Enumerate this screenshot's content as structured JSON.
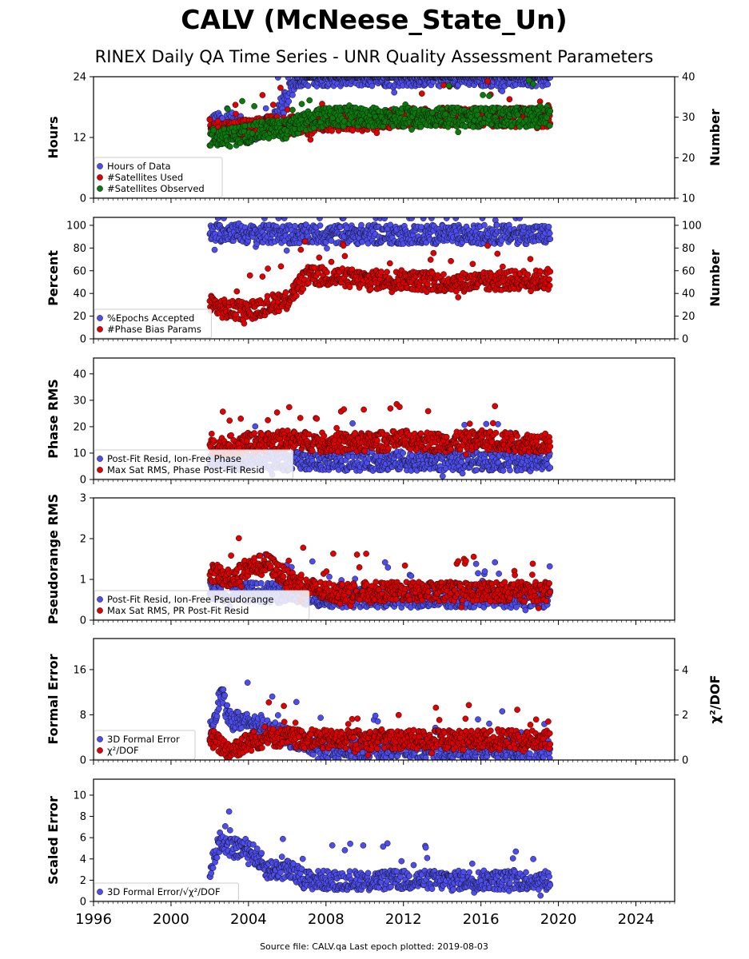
{
  "title": "CALV (McNeese_State_Un)",
  "subtitle": "RINEX Daily QA Time Series - UNR Quality Assessment Parameters",
  "footer": "Source file: CALV.qa Last epoch plotted: 2019-08-03",
  "chart_data": [
    {
      "type": "scatter",
      "ylabel": "Hours",
      "ylabel_right": "Number",
      "ylim": [
        0,
        24
      ],
      "yticks": [
        "0",
        "12",
        "24"
      ],
      "ylim_right": [
        10,
        40
      ],
      "yticks_right": [
        "10",
        "20",
        "30",
        "40"
      ],
      "xlim": [
        1996,
        2026
      ],
      "legend_position": "lower-left",
      "series": [
        {
          "name": "Hours of Data",
          "color": "#4c4cf0",
          "axis": "left",
          "x": [
            2002.0,
            2002.5,
            2003.0,
            2003.5,
            2004.0,
            2005.0,
            2006.0,
            2006.5,
            2007.0,
            2008.0,
            2009.0,
            2010.0,
            2012.0,
            2014.0,
            2016.0,
            2018.0,
            2019.6
          ],
          "y": [
            15,
            15,
            15,
            15,
            13,
            14,
            20,
            24,
            24,
            24,
            24,
            24,
            24,
            24,
            24,
            24,
            24
          ]
        },
        {
          "name": "#Satellites Used",
          "color": "#e00000",
          "axis": "right",
          "x": [
            2002.0,
            2003.0,
            2004.0,
            2005.0,
            2006.0,
            2007.0,
            2008.0,
            2010.0,
            2012.0,
            2014.0,
            2016.0,
            2018.0,
            2019.6
          ],
          "y": [
            27,
            27,
            27,
            28,
            28,
            28,
            29,
            29,
            30,
            30,
            30,
            30,
            30
          ]
        },
        {
          "name": "#Satellites Observed",
          "color": "#0a7a0a",
          "axis": "right",
          "x": [
            2002.0,
            2003.0,
            2004.0,
            2005.0,
            2006.0,
            2007.0,
            2008.0,
            2010.0,
            2012.0,
            2014.0,
            2016.0,
            2018.0,
            2019.6
          ],
          "y": [
            25,
            25,
            26,
            27,
            27,
            29,
            30,
            30,
            30,
            30,
            30,
            30,
            30
          ]
        }
      ]
    },
    {
      "type": "scatter",
      "ylabel": "Percent",
      "ylabel_right": "Number",
      "ylim": [
        0,
        107
      ],
      "yticks": [
        "0",
        "20",
        "40",
        "60",
        "80",
        "100"
      ],
      "ylim_right": [
        0,
        107
      ],
      "yticks_right": [
        "0",
        "20",
        "40",
        "60",
        "80",
        "100"
      ],
      "xlim": [
        1996,
        2026
      ],
      "legend_position": "lower-left",
      "series": [
        {
          "name": "%Epochs Accepted",
          "color": "#4c4cf0",
          "axis": "left",
          "x": [
            2002.0,
            2003.0,
            2004.0,
            2006.0,
            2008.0,
            2010.0,
            2012.0,
            2014.0,
            2016.0,
            2018.0,
            2019.6
          ],
          "y": [
            92,
            95,
            92,
            92,
            92,
            92,
            92,
            92,
            92,
            92,
            92
          ]
        },
        {
          "name": "#Phase Bias Params",
          "color": "#e00000",
          "axis": "right",
          "x": [
            2002.0,
            2003.0,
            2004.0,
            2005.0,
            2006.0,
            2007.0,
            2008.0,
            2010.0,
            2012.0,
            2014.0,
            2016.0,
            2018.0,
            2019.6
          ],
          "y": [
            30,
            25,
            25,
            30,
            35,
            55,
            55,
            52,
            52,
            50,
            50,
            52,
            52
          ]
        }
      ]
    },
    {
      "type": "scatter",
      "ylabel": "Phase RMS",
      "ylim": [
        0,
        46
      ],
      "yticks": [
        "0",
        "10",
        "20",
        "30",
        "40"
      ],
      "xlim": [
        1996,
        2026
      ],
      "legend_position": "lower-left",
      "series": [
        {
          "name": "Post-Fit Resid, Ion-Free Phase",
          "color": "#4c4cf0",
          "axis": "left",
          "x": [
            2002.0,
            2004.0,
            2006.0,
            2008.0,
            2010.0,
            2012.0,
            2014.0,
            2016.0,
            2018.0,
            2019.6
          ],
          "y": [
            7,
            7,
            7,
            7,
            7,
            7,
            7,
            7,
            7,
            7
          ]
        },
        {
          "name": "Max Sat RMS, Phase Post-Fit Resid",
          "color": "#e00000",
          "axis": "left",
          "x": [
            2002.0,
            2004.0,
            2006.0,
            2008.0,
            2010.0,
            2012.0,
            2014.0,
            2016.0,
            2018.0,
            2019.6
          ],
          "y": [
            12,
            14,
            15,
            14,
            14,
            15,
            14,
            15,
            14,
            14
          ]
        }
      ]
    },
    {
      "type": "scatter",
      "ylabel": "Pseudorange RMS",
      "ylim": [
        0,
        3
      ],
      "yticks": [
        "0",
        "1",
        "2",
        "3"
      ],
      "xlim": [
        1996,
        2026
      ],
      "legend_position": "lower-left",
      "series": [
        {
          "name": "Post-Fit Resid, Ion-Free Pseudorange",
          "color": "#4c4cf0",
          "axis": "left",
          "x": [
            2002.0,
            2004.0,
            2006.0,
            2008.0,
            2010.0,
            2012.0,
            2014.0,
            2016.0,
            2018.0,
            2019.6
          ],
          "y": [
            0.7,
            0.7,
            0.65,
            0.55,
            0.55,
            0.55,
            0.55,
            0.55,
            0.55,
            0.55
          ]
        },
        {
          "name": "Max Sat RMS, PR Post-Fit Resid",
          "color": "#e00000",
          "axis": "left",
          "x": [
            2002.0,
            2003.0,
            2004.0,
            2005.0,
            2006.0,
            2007.0,
            2008.0,
            2010.0,
            2012.0,
            2014.0,
            2016.0,
            2018.0,
            2019.6
          ],
          "y": [
            1.2,
            1.0,
            1.3,
            1.4,
            1.0,
            0.8,
            0.7,
            0.7,
            0.7,
            0.7,
            0.7,
            0.7,
            0.7
          ]
        }
      ]
    },
    {
      "type": "scatter",
      "ylabel": "Formal Error",
      "ylabel_right": "χ²/DOF",
      "ylim": [
        0,
        21.5
      ],
      "yticks": [
        "0",
        "8",
        "16"
      ],
      "ylim_right": [
        0,
        5.4
      ],
      "yticks_right": [
        "0",
        "2",
        "4"
      ],
      "xlim": [
        1996,
        2026
      ],
      "legend_position": "lower-left",
      "series": [
        {
          "name": "3D Formal Error",
          "color": "#4c4cf0",
          "axis": "left",
          "x": [
            2002.0,
            2002.6,
            2003.0,
            2004.0,
            2006.0,
            2008.0,
            2010.0,
            2012.0,
            2014.0,
            2016.0,
            2018.0,
            2019.6
          ],
          "y": [
            5,
            12,
            7,
            7,
            4,
            2,
            2,
            2,
            2,
            2,
            2,
            2
          ]
        },
        {
          "name": "χ²/DOF",
          "color": "#e00000",
          "axis": "right",
          "x": [
            2002.0,
            2003.0,
            2004.0,
            2005.0,
            2006.0,
            2008.0,
            2010.0,
            2012.0,
            2014.0,
            2016.0,
            2018.0,
            2019.6
          ],
          "y": [
            1.0,
            0.4,
            0.8,
            1.0,
            1.0,
            0.9,
            0.9,
            0.9,
            0.9,
            0.9,
            0.9,
            0.9
          ]
        }
      ]
    },
    {
      "type": "scatter",
      "ylabel": "Scaled Error",
      "ylim": [
        0,
        11.5
      ],
      "yticks": [
        "0",
        "2",
        "4",
        "6",
        "8",
        "10"
      ],
      "xlim": [
        1996,
        2026
      ],
      "legend_position": "lower-left",
      "xticks": [
        "1996",
        "2000",
        "2004",
        "2008",
        "2012",
        "2016",
        "2020",
        "2024"
      ],
      "series": [
        {
          "name": "3D Formal Error/√χ²/DOF",
          "color": "#4c4cf0",
          "axis": "left",
          "x": [
            2002.0,
            2002.6,
            2003.0,
            2004.0,
            2005.0,
            2006.0,
            2007.0,
            2008.0,
            2010.0,
            2012.0,
            2014.0,
            2016.0,
            2018.0,
            2019.6
          ],
          "y": [
            3,
            6,
            5,
            5,
            3,
            3,
            2,
            2,
            2,
            2,
            2,
            2,
            2,
            2
          ]
        }
      ]
    }
  ]
}
